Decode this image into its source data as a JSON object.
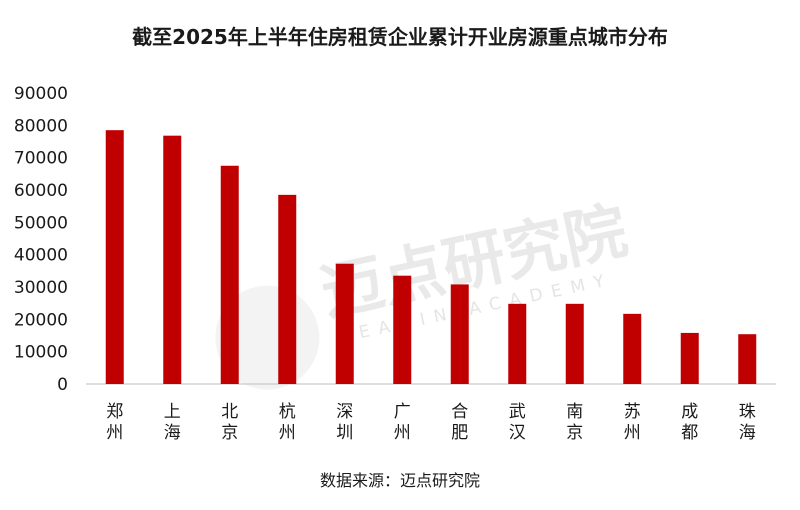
{
  "chart_data": {
    "type": "bar",
    "title": "截至2025年上半年住房租赁企业累计开业房源重点城市分布",
    "categories": [
      "郑州",
      "上海",
      "北京",
      "杭州",
      "深圳",
      "广州",
      "合肥",
      "武汉",
      "南京",
      "苏州",
      "成都",
      "珠海"
    ],
    "values": [
      78500,
      76800,
      67500,
      58500,
      37200,
      33500,
      30800,
      24800,
      24800,
      21700,
      15800,
      15400
    ],
    "ylim": [
      0,
      90000
    ],
    "yticks": [
      0,
      10000,
      20000,
      30000,
      40000,
      50000,
      60000,
      70000,
      80000,
      90000
    ],
    "xlabel": "",
    "ylabel": "",
    "bar_color": "#c00000",
    "grid": false
  },
  "source": "数据来源：迈点研究院",
  "watermark": {
    "cn": "迈点研究院",
    "en": "MEADIN ACADEMY"
  }
}
